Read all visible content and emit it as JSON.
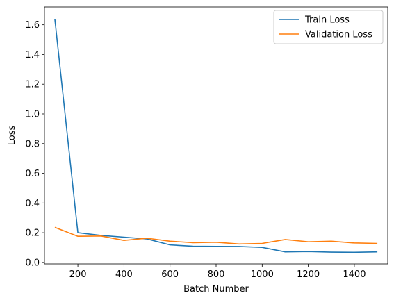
{
  "chart_data": {
    "type": "line",
    "title": "",
    "xlabel": "Batch Number",
    "ylabel": "Loss",
    "xlim": [
      55,
      1545
    ],
    "ylim": [
      -0.01,
      1.72
    ],
    "x_ticks": [
      200,
      400,
      600,
      800,
      1000,
      1200,
      1400
    ],
    "x_tick_labels": [
      "200",
      "400",
      "600",
      "800",
      "1000",
      "1200",
      "1400"
    ],
    "y_ticks": [
      0.0,
      0.2,
      0.4,
      0.6,
      0.8,
      1.0,
      1.2,
      1.4,
      1.6
    ],
    "y_tick_labels": [
      "0.0",
      "0.2",
      "0.4",
      "0.6",
      "0.8",
      "1.0",
      "1.2",
      "1.4",
      "1.6"
    ],
    "grid": false,
    "legend_position": "top-right",
    "x": [
      100,
      200,
      300,
      400,
      500,
      600,
      700,
      800,
      900,
      1000,
      1100,
      1200,
      1300,
      1400,
      1500
    ],
    "series": [
      {
        "name": "Train Loss",
        "color": "#1f77b4",
        "values": [
          1.64,
          0.2,
          0.182,
          0.17,
          0.158,
          0.118,
          0.109,
          0.108,
          0.107,
          0.101,
          0.071,
          0.073,
          0.069,
          0.068,
          0.071
        ]
      },
      {
        "name": "Validation Loss",
        "color": "#ff7f0e",
        "values": [
          0.236,
          0.176,
          0.178,
          0.148,
          0.163,
          0.143,
          0.133,
          0.136,
          0.124,
          0.128,
          0.154,
          0.139,
          0.143,
          0.131,
          0.128
        ]
      }
    ]
  }
}
